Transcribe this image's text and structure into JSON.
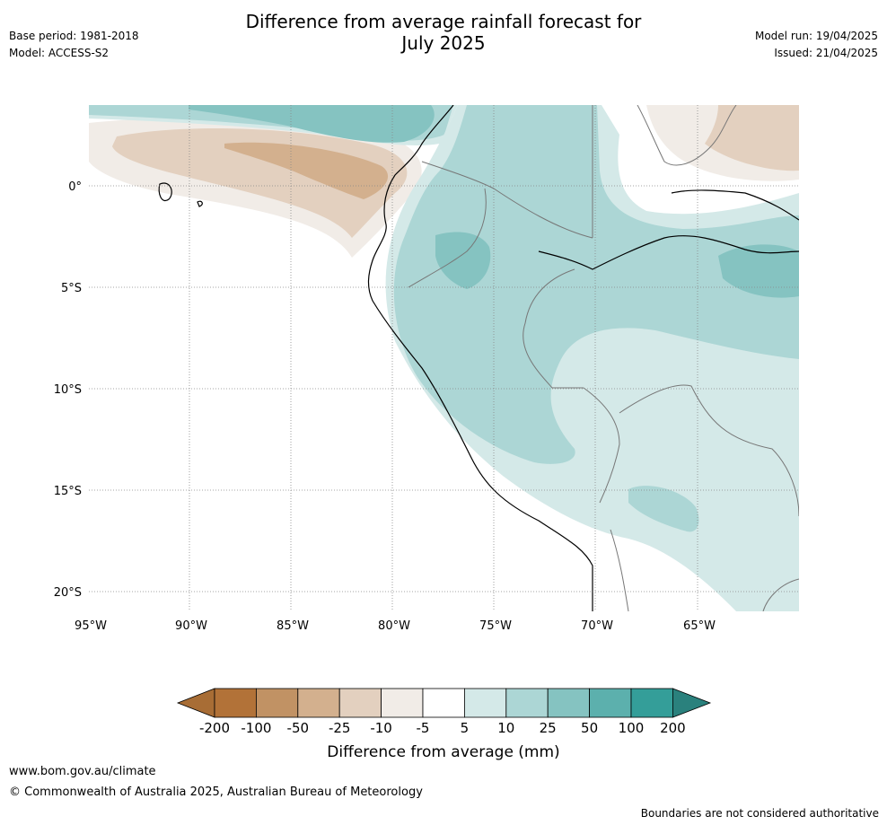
{
  "title": {
    "line1": "Difference from average rainfall forecast for",
    "line2": "July 2025"
  },
  "meta_left": {
    "base_period": "Base period: 1981-2018",
    "model": "Model: ACCESS-S2"
  },
  "meta_right": {
    "model_run": "Model run: 19/04/2025",
    "issued": "Issued: 21/04/2025"
  },
  "map": {
    "lon_labels": [
      "95°W",
      "90°W",
      "85°W",
      "80°W",
      "75°W",
      "70°W",
      "65°W"
    ],
    "lat_labels": [
      "0°",
      "5°S",
      "10°S",
      "15°S",
      "20°S"
    ]
  },
  "colorbar": {
    "ticks": [
      "-200",
      "-100",
      "-50",
      "-25",
      "-10",
      "-5",
      "5",
      "10",
      "25",
      "50",
      "100",
      "200"
    ],
    "colors": [
      "#a86d35",
      "#b27238",
      "#c19264",
      "#d3b08e",
      "#e3d0bf",
      "#f1ece7",
      "#ffffff",
      "#d4e9e8",
      "#acd6d5",
      "#85c3c1",
      "#5cb0ad",
      "#349e99",
      "#2a817d"
    ],
    "label": "Difference from average (mm)"
  },
  "footer": {
    "url": "www.bom.gov.au/climate",
    "copyright": "© Commonwealth of Australia 2025, Australian Bureau of Meteorology",
    "note": "Boundaries are not considered authoritative"
  }
}
